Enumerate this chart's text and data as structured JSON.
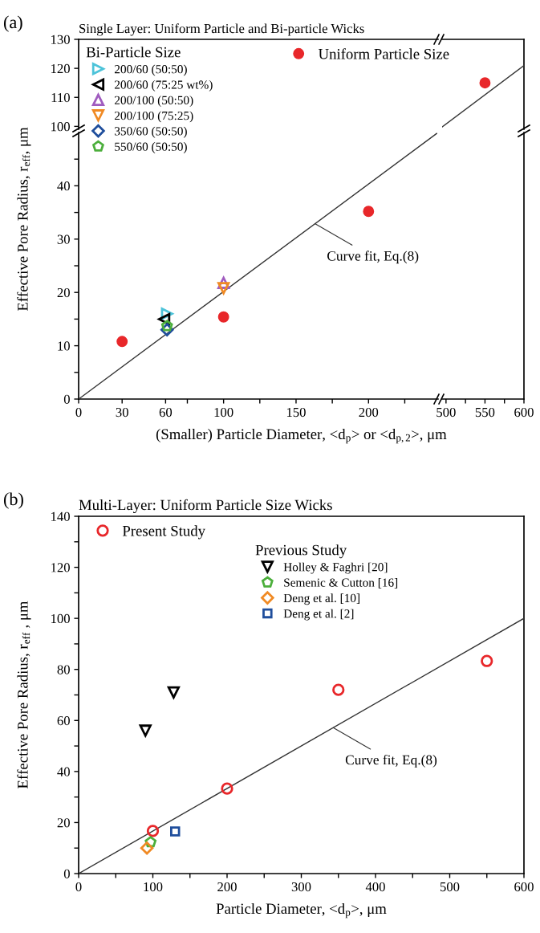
{
  "chart_data": [
    {
      "type": "scatter",
      "xlabel": "(Smaller) Particle Diameter, <d$_{p}$> or <d$_{p,2}$>, μm",
      "ylabel": "Effective Pore Radius, r$_{eff}$, μm",
      "legend_title": "Bi-Particle Size",
      "legend": "top left",
      "annotations": [
        {
          "text": "Curve fit, Eq.(8)",
          "x": 163,
          "y": 32.9
        }
      ],
      "xlim": [
        0,
        248
      ],
      "ylim": [
        0,
        50
      ],
      "xticks": [
        0,
        30,
        60,
        100,
        150,
        200,
        {
          "value": 75,
          "label": null
        },
        {
          "value": 125,
          "label": null
        },
        {
          "value": 175,
          "label": null
        },
        {
          "value": 225,
          "label": null
        }
      ],
      "yticks": [
        0,
        10,
        20,
        30,
        40,
        {
          "value": 5,
          "label": null
        },
        {
          "value": 15,
          "label": null
        },
        {
          "value": 25,
          "label": null
        },
        {
          "value": 35,
          "label": null
        },
        {
          "value": 45,
          "label": null
        }
      ],
      "series": [
        {
          "name": "Uniform Particle Size",
          "marker": "circle",
          "color": "#e8272a",
          "x": [
            30,
            100,
            200
          ],
          "values": [
            10.8,
            15.4,
            35.2
          ]
        },
        {
          "name": "200/60 (50:50)",
          "marker": "triangle-right",
          "color": "#4cc3d9",
          "x": [
            61
          ],
          "values": [
            16
          ]
        },
        {
          "name": "200/60 (75:25 wt%)",
          "marker": "triangle-left",
          "color": "#000000",
          "x": [
            59
          ],
          "values": [
            15
          ]
        },
        {
          "name": "200/100 (50:50)",
          "marker": "triangle",
          "color": "#a05cbf",
          "x": [
            100
          ],
          "values": [
            21.8
          ]
        },
        {
          "name": "200/100 (75:25)",
          "marker": "triangle-down",
          "color": "#f08a24",
          "x": [
            100
          ],
          "values": [
            20.8
          ]
        },
        {
          "name": "350/60 (50:50)",
          "marker": "diamond",
          "color": "#1f4e9c",
          "x": [
            61
          ],
          "values": [
            13
          ]
        },
        {
          "name": "550/60 (50:50)",
          "color": "#4caf3c",
          "x": [
            61
          ],
          "values": [
            13.7
          ]
        },
        {
          "type": "line",
          "color": "#333333",
          "x": [
            0,
            247
          ],
          "values": [
            0,
            49.8
          ]
        }
      ]
    },
    {
      "type": "scatter",
      "xlim": [
        495,
        600
      ],
      "ylim": [
        0,
        50
      ],
      "xticks": [
        500,
        550,
        600,
        {
          "value": 525,
          "label": null
        },
        {
          "value": 575,
          "label": null
        }
      ],
      "tick_labels": "x"
    },
    {
      "type": "scatter",
      "title": "Single Layer: Uniform Particle and Bi-particle Wicks",
      "annotations": [
        "(a)"
      ],
      "xlim": [
        0,
        248
      ],
      "ylim": [
        99,
        130
      ],
      "yticks": [
        100,
        110,
        120,
        130
      ],
      "tick_labels": "y"
    },
    {
      "type": "scatter",
      "xlim": [
        495,
        600
      ],
      "ylim": [
        99,
        130
      ],
      "tick_labels": false,
      "series": [
        {
          "marker": "circle",
          "color": "#e8272a",
          "x": [
            550
          ],
          "values": [
            115
          ]
        },
        {
          "type": "line",
          "color": "#333333",
          "x": [
            495,
            600
          ],
          "values": [
            99.8,
            121
          ]
        }
      ]
    },
    {
      "type": "scatter",
      "title": "Multi-Layer: Uniform Particle Size Wicks",
      "xlabel": "Particle Diameter, <d$_{p}$>, μm",
      "ylabel": "Effective Pore Radius, r$_{eff}$ , μm",
      "legend_title": "Previous Study",
      "legend": "top left",
      "annotations": [
        "(b)",
        {
          "text": "Curve fit, Eq.(8)",
          "x": 343,
          "y": 57.2
        }
      ],
      "xlim": [
        0,
        600
      ],
      "ylim": [
        0,
        140
      ],
      "xticks": [
        0,
        100,
        200,
        300,
        400,
        500,
        600,
        {
          "value": 50,
          "label": null
        },
        {
          "value": 150,
          "label": null
        },
        {
          "value": 250,
          "label": null
        },
        {
          "value": 350,
          "label": null
        },
        {
          "value": 450,
          "label": null
        },
        {
          "value": 550,
          "label": null
        }
      ],
      "yticks": [
        0,
        20,
        40,
        60,
        80,
        100,
        120,
        140,
        {
          "value": 10,
          "label": null
        },
        {
          "value": 30,
          "label": null
        },
        {
          "value": 50,
          "label": null
        },
        {
          "value": 70,
          "label": null
        },
        {
          "value": 90,
          "label": null
        },
        {
          "value": 110,
          "label": null
        },
        {
          "value": 130,
          "label": null
        }
      ],
      "series": [
        {
          "name": "Present Study",
          "marker": "circle-open",
          "color": "#e8272a",
          "x": [
            100,
            200,
            350,
            550
          ],
          "values": [
            16.7,
            33.3,
            72,
            83.3
          ]
        },
        {
          "name": "Holley & Faghri [20]",
          "marker": "triangle-down",
          "color": "#000000",
          "x": [
            90,
            128
          ],
          "values": [
            56,
            71
          ]
        },
        {
          "name": "Semenic & Cutton [16]",
          "color": "#4caf3c",
          "x": [
            97
          ],
          "values": [
            12.3
          ]
        },
        {
          "name": "Deng et al. [10]",
          "marker": "diamond",
          "color": "#f08a24",
          "x": [
            92
          ],
          "values": [
            10
          ]
        },
        {
          "name": "Deng et al. [2]",
          "marker": "square",
          "color": "#1f4e9c",
          "x": [
            130
          ],
          "values": [
            16.5
          ]
        },
        {
          "type": "line",
          "color": "#333333",
          "x": [
            0,
            600
          ],
          "values": [
            0,
            100
          ]
        }
      ]
    }
  ]
}
